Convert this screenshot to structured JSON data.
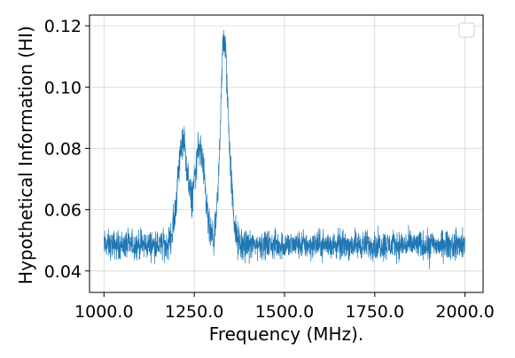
{
  "chart_data": {
    "type": "line",
    "xlabel": "Frequency (MHz).",
    "ylabel": "Hypothetical Information (HI)",
    "xlim": [
      960,
      2050
    ],
    "ylim": [
      0.033,
      0.1235
    ],
    "x_ticks": [
      1000,
      1250,
      1500,
      1750,
      2000
    ],
    "x_tick_labels": [
      "1000.0",
      "1250.0",
      "1500.0",
      "1750.0",
      "2000.0"
    ],
    "y_ticks": [
      0.04,
      0.06,
      0.08,
      0.1,
      0.12
    ],
    "y_tick_labels": [
      "0.04",
      "0.06",
      "0.08",
      "0.10",
      "0.12"
    ],
    "grid": true,
    "legend": "top-right",
    "series": [
      {
        "color": "#1f77b4",
        "x_range": [
          1000,
          2000
        ],
        "baseline": 0.0485,
        "noise_amplitude": 0.0035,
        "peaks": [
          {
            "x": 1218,
            "y": 0.082
          },
          {
            "x": 1265,
            "y": 0.08
          },
          {
            "x": 1332,
            "y": 0.113
          },
          {
            "x": 1350,
            "y": 0.063
          }
        ]
      }
    ]
  }
}
